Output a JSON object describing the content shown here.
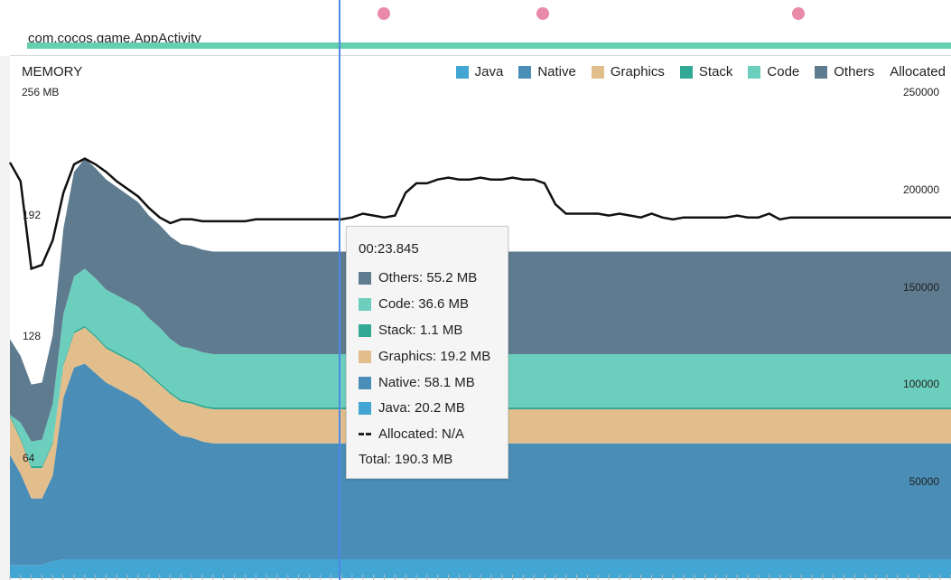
{
  "process": {
    "name": "com.cocos.game.AppActivity"
  },
  "memory": {
    "title": "MEMORY",
    "left_axis": [
      "256 MB",
      "192",
      "128",
      "64"
    ],
    "right_axis": [
      "250000",
      "200000",
      "150000",
      "100000",
      "50000"
    ]
  },
  "legend": [
    {
      "label": "Java",
      "color": "#42a5d2"
    },
    {
      "label": "Native",
      "color": "#4a8db7"
    },
    {
      "label": "Graphics",
      "color": "#e2be8c"
    },
    {
      "label": "Stack",
      "color": "#31a995"
    },
    {
      "label": "Code",
      "color": "#6ccfbe"
    },
    {
      "label": "Others",
      "color": "#5e7b8f"
    },
    {
      "label": "Allocated",
      "color": ""
    }
  ],
  "tooltip": {
    "time": "00:23.845",
    "rows": [
      {
        "label": "Others: 55.2 MB",
        "color": "#5e7b8f"
      },
      {
        "label": "Code: 36.6 MB",
        "color": "#6ccfbe"
      },
      {
        "label": "Stack: 1.1 MB",
        "color": "#31a995"
      },
      {
        "label": "Graphics: 19.2 MB",
        "color": "#e2be8c"
      },
      {
        "label": "Native: 58.1 MB",
        "color": "#4a8db7"
      },
      {
        "label": "Java: 20.2 MB",
        "color": "#42a5d2"
      },
      {
        "label": "Allocated: N/A",
        "color": ""
      }
    ],
    "total": "Total: 190.3 MB"
  },
  "chart_data": {
    "type": "area",
    "x_unit": "sample",
    "y_unit": "MB",
    "ylim": [
      0,
      256
    ],
    "x": [
      0,
      1,
      2,
      3,
      4,
      5,
      6,
      7,
      8,
      9,
      10,
      11,
      12,
      13,
      14,
      15,
      16,
      17,
      18,
      19,
      20,
      21,
      22,
      23,
      24,
      25,
      26,
      27,
      28,
      29,
      30,
      31,
      32,
      33,
      34,
      35,
      36,
      37,
      38,
      39,
      40,
      41,
      42,
      43,
      44,
      45,
      46,
      47,
      48,
      49,
      50,
      51,
      52,
      53,
      54,
      55,
      56,
      57,
      58,
      59,
      60,
      61,
      62,
      63,
      64,
      65,
      66,
      67,
      68,
      69,
      70,
      71,
      72,
      73,
      74,
      75,
      76,
      77,
      78,
      79,
      80,
      81,
      82,
      83,
      84,
      85,
      86,
      87,
      88
    ],
    "series": [
      {
        "name": "Java",
        "values": [
          7,
          7,
          7,
          7,
          9,
          10,
          10,
          10,
          10,
          10,
          10,
          10,
          10,
          10,
          10,
          10,
          10,
          10,
          10,
          10,
          10,
          10,
          10,
          10,
          10,
          10,
          10,
          10,
          10,
          10,
          10,
          10,
          10,
          10,
          10,
          10,
          10,
          10,
          10,
          10,
          10,
          10,
          10,
          10,
          10,
          10,
          10,
          10,
          10,
          10,
          10,
          10,
          10,
          10,
          10,
          10,
          10,
          10,
          10,
          10,
          10,
          10,
          10,
          10,
          10,
          10,
          10,
          10,
          10,
          10,
          10,
          10,
          10,
          10,
          10,
          10,
          10,
          10,
          10,
          10,
          10,
          10,
          10,
          10,
          10,
          10,
          10,
          10,
          10
        ]
      },
      {
        "name": "Native",
        "values": [
          58,
          48,
          35,
          35,
          45,
          85,
          101,
          103,
          98,
          93,
          90,
          87,
          84,
          79,
          74,
          69,
          65,
          64,
          62,
          61,
          61,
          61,
          61,
          61,
          61,
          61,
          61,
          61,
          61,
          61,
          61,
          61,
          61,
          61,
          61,
          61,
          61,
          61,
          61,
          61,
          61,
          61,
          61,
          61,
          61,
          61,
          61,
          61,
          61,
          61,
          61,
          61,
          61,
          61,
          61,
          61,
          61,
          61,
          61,
          61,
          61,
          61,
          61,
          61,
          61,
          61,
          61,
          61,
          61,
          61,
          61,
          61,
          61,
          61,
          61,
          61,
          61,
          61,
          61,
          61,
          61,
          61,
          61,
          61,
          61,
          61,
          61,
          61,
          61
        ]
      },
      {
        "name": "Graphics",
        "values": [
          20,
          18,
          16,
          16,
          17,
          17,
          18,
          19,
          19,
          18,
          18,
          18,
          18,
          18,
          18,
          18,
          18,
          18,
          18,
          18,
          18,
          18,
          18,
          18,
          18,
          18,
          18,
          18,
          18,
          18,
          18,
          18,
          18,
          18,
          18,
          18,
          18,
          18,
          18,
          18,
          18,
          18,
          18,
          18,
          18,
          18,
          18,
          18,
          18,
          18,
          18,
          18,
          18,
          18,
          18,
          18,
          18,
          18,
          18,
          18,
          18,
          18,
          18,
          18,
          18,
          18,
          18,
          18,
          18,
          18,
          18,
          18,
          18,
          18,
          18,
          18,
          18,
          18,
          18,
          18,
          18,
          18,
          18,
          18,
          18,
          18,
          18,
          18,
          18
        ]
      },
      {
        "name": "Stack",
        "values": [
          1,
          1,
          1,
          1,
          1,
          1,
          1,
          1,
          1,
          1,
          1,
          1,
          1,
          1,
          1,
          1,
          1,
          1,
          1,
          1,
          1,
          1,
          1,
          1,
          1,
          1,
          1,
          1,
          1,
          1,
          1,
          1,
          1,
          1,
          1,
          1,
          1,
          1,
          1,
          1,
          1,
          1,
          1,
          1,
          1,
          1,
          1,
          1,
          1,
          1,
          1,
          1,
          1,
          1,
          1,
          1,
          1,
          1,
          1,
          1,
          1,
          1,
          1,
          1,
          1,
          1,
          1,
          1,
          1,
          1,
          1,
          1,
          1,
          1,
          1,
          1,
          1,
          1,
          1,
          1,
          1,
          1,
          1,
          1,
          1,
          1,
          1,
          1,
          1
        ]
      },
      {
        "name": "Code",
        "values": [
          0,
          8,
          13,
          14,
          20,
          26,
          29,
          30,
          30,
          30,
          30,
          30,
          30,
          29,
          29,
          28,
          28,
          28,
          28,
          28,
          28,
          28,
          28,
          28,
          28,
          28,
          28,
          28,
          28,
          28,
          28,
          28,
          28,
          28,
          28,
          28,
          28,
          28,
          28,
          28,
          28,
          28,
          28,
          28,
          28,
          28,
          28,
          28,
          28,
          28,
          28,
          28,
          28,
          28,
          28,
          28,
          28,
          28,
          28,
          28,
          28,
          28,
          28,
          28,
          28,
          28,
          28,
          28,
          28,
          28,
          28,
          28,
          28,
          28,
          28,
          28,
          28,
          28,
          28,
          28,
          28,
          28,
          28,
          28,
          28,
          28,
          28,
          28,
          28
        ]
      },
      {
        "name": "Others",
        "values": [
          40,
          35,
          30,
          30,
          36,
          45,
          55,
          58,
          58,
          58,
          57,
          56,
          55,
          54,
          54,
          54,
          54,
          54,
          54,
          54,
          54,
          54,
          54,
          54,
          54,
          54,
          54,
          54,
          54,
          54,
          54,
          54,
          54,
          54,
          54,
          54,
          54,
          54,
          54,
          54,
          54,
          54,
          54,
          54,
          54,
          54,
          54,
          54,
          54,
          54,
          54,
          54,
          54,
          54,
          54,
          54,
          54,
          54,
          54,
          54,
          54,
          54,
          54,
          54,
          54,
          54,
          54,
          54,
          54,
          54,
          54,
          54,
          54,
          54,
          54,
          54,
          54,
          54,
          54,
          54,
          54,
          54,
          54,
          54,
          54,
          54,
          54,
          54,
          54
        ]
      }
    ],
    "total": [
      219,
      209,
      163,
      165,
      178,
      203,
      218,
      221,
      218,
      214,
      209,
      205,
      201,
      195,
      190,
      187,
      189,
      189,
      188,
      188,
      188,
      188,
      188,
      189,
      189,
      189,
      189,
      189,
      189,
      189,
      189,
      189,
      190,
      192,
      191,
      190,
      191,
      203,
      208,
      208,
      210,
      211,
      210,
      210,
      211,
      210,
      210,
      211,
      210,
      210,
      208,
      197,
      192,
      192,
      192,
      192,
      191,
      192,
      191,
      190,
      192,
      190,
      189,
      190,
      190,
      190,
      190,
      190,
      191,
      190,
      190,
      192,
      189,
      190,
      190,
      190,
      190,
      190,
      190,
      190,
      190,
      190,
      190,
      190,
      190,
      190,
      190,
      190,
      190
    ]
  }
}
